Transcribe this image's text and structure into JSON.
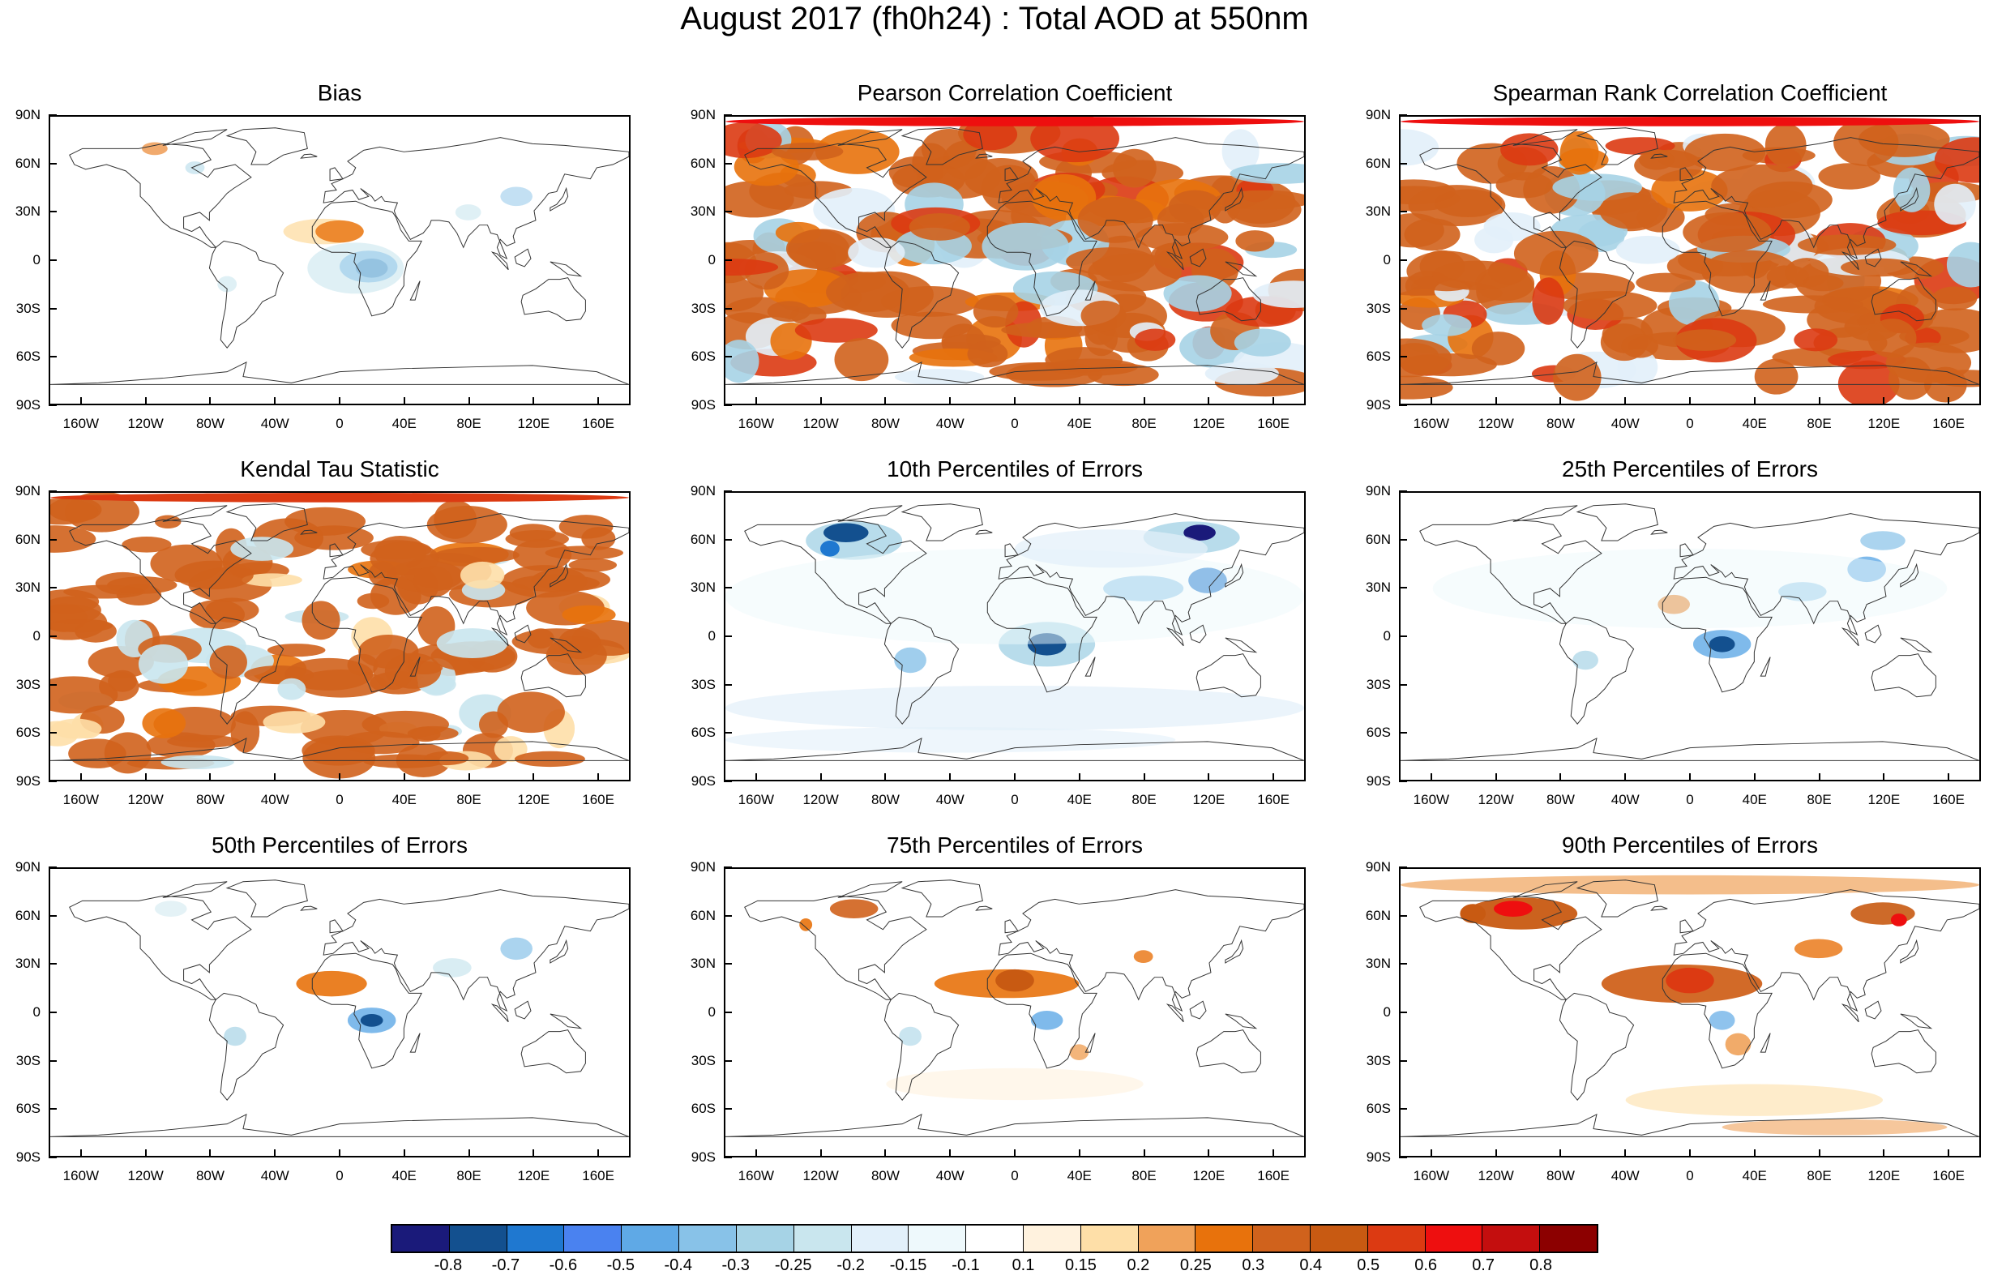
{
  "title": "August 2017 (fh0h24) : Total AOD at 550nm",
  "lat_labels": [
    "90N",
    "60N",
    "30N",
    "0",
    "30S",
    "60S",
    "90S"
  ],
  "lon_labels": [
    "160W",
    "120W",
    "80W",
    "40W",
    "0",
    "40E",
    "80E",
    "120E",
    "160E"
  ],
  "lon_values": [
    -160,
    -120,
    -80,
    -40,
    0,
    40,
    80,
    120,
    160
  ],
  "panels": [
    {
      "title": "Bias",
      "pattern": "bias"
    },
    {
      "title": "Pearson Correlation Coefficient",
      "pattern": "corr"
    },
    {
      "title": "Spearman Rank Correlation Coefficient",
      "pattern": "corr"
    },
    {
      "title": "Kendal Tau Statistic",
      "pattern": "tau"
    },
    {
      "title": "10th Percentiles of Errors",
      "pattern": "p10"
    },
    {
      "title": "25th Percentiles of Errors",
      "pattern": "p25"
    },
    {
      "title": "50th Percentiles of Errors",
      "pattern": "p50"
    },
    {
      "title": "75th Percentiles of Errors",
      "pattern": "p75"
    },
    {
      "title": "90th Percentiles of Errors",
      "pattern": "p90"
    }
  ],
  "colorbar": {
    "colors": [
      "#1a1a7a",
      "#13508f",
      "#1f78d0",
      "#4a82f0",
      "#5fa9e6",
      "#88c2e8",
      "#a6d3e6",
      "#c9e6ee",
      "#e2f0fa",
      "#eef9fc",
      "#ffffff",
      "#fff2de",
      "#fedfa8",
      "#f0a25a",
      "#e8720c",
      "#d0621c",
      "#c85a12",
      "#dc3a12",
      "#ee0f0f",
      "#c40e0e",
      "#8c0000"
    ],
    "labels": [
      "-0.8",
      "-0.7",
      "-0.6",
      "-0.5",
      "-0.4",
      "-0.3",
      "-0.25",
      "-0.2",
      "-0.15",
      "-0.1",
      "0.1",
      "0.15",
      "0.2",
      "0.25",
      "0.3",
      "0.4",
      "0.5",
      "0.6",
      "0.7",
      "0.8"
    ]
  }
}
